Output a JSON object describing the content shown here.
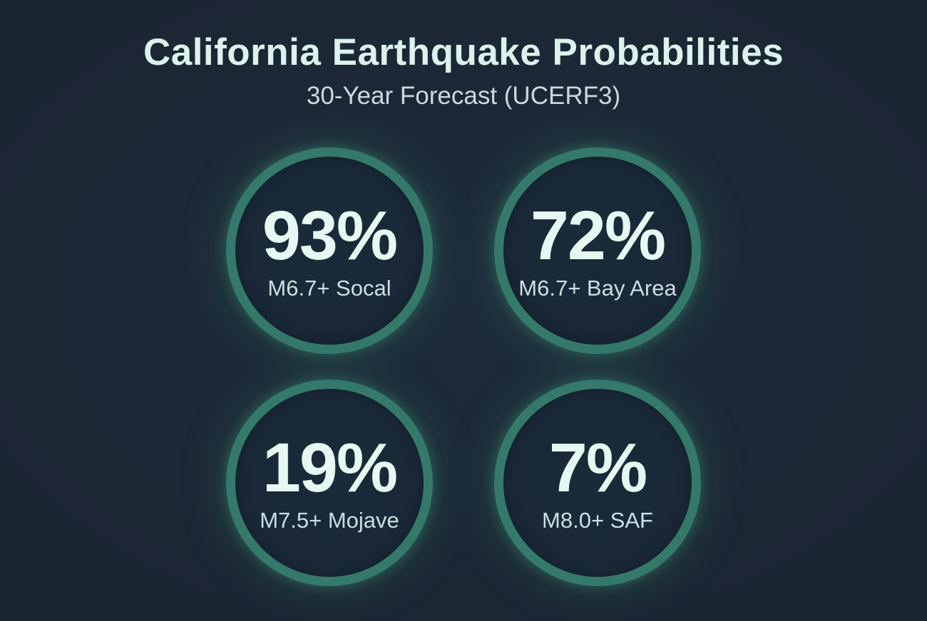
{
  "page": {
    "title": "California Earthquake Probabilities",
    "subtitle": "30-Year Forecast (UCERF3)"
  },
  "colors": {
    "background": "#1C2734",
    "circle_fill": "#192736",
    "ring": "#34796A",
    "ring_glow": "rgba(56,140,110,0.18)",
    "title_text": "#DCF2EC",
    "subtitle_text": "#C9DADD",
    "value_text": "#E7F7F1",
    "label_text": "#CBDFE0"
  },
  "stats": [
    {
      "value": "93%",
      "label": "M6.7+ Socal"
    },
    {
      "value": "72%",
      "label": "M6.7+ Bay Area"
    },
    {
      "value": "19%",
      "label": "M7.5+ Mojave"
    },
    {
      "value": "7%",
      "label": "M8.0+ SAF"
    }
  ],
  "chart_data": {
    "type": "table",
    "title": "California Earthquake Probabilities",
    "subtitle": "30-Year Forecast (UCERF3)",
    "categories": [
      "M6.7+ Socal",
      "M6.7+ Bay Area",
      "M7.5+ Mojave",
      "M8.0+ SAF"
    ],
    "values": [
      93,
      72,
      19,
      7
    ],
    "unit": "%",
    "note": "Each value shown as a large percentage inside a teal ring circle, arranged in a 2x2 grid on a dark navy background"
  }
}
